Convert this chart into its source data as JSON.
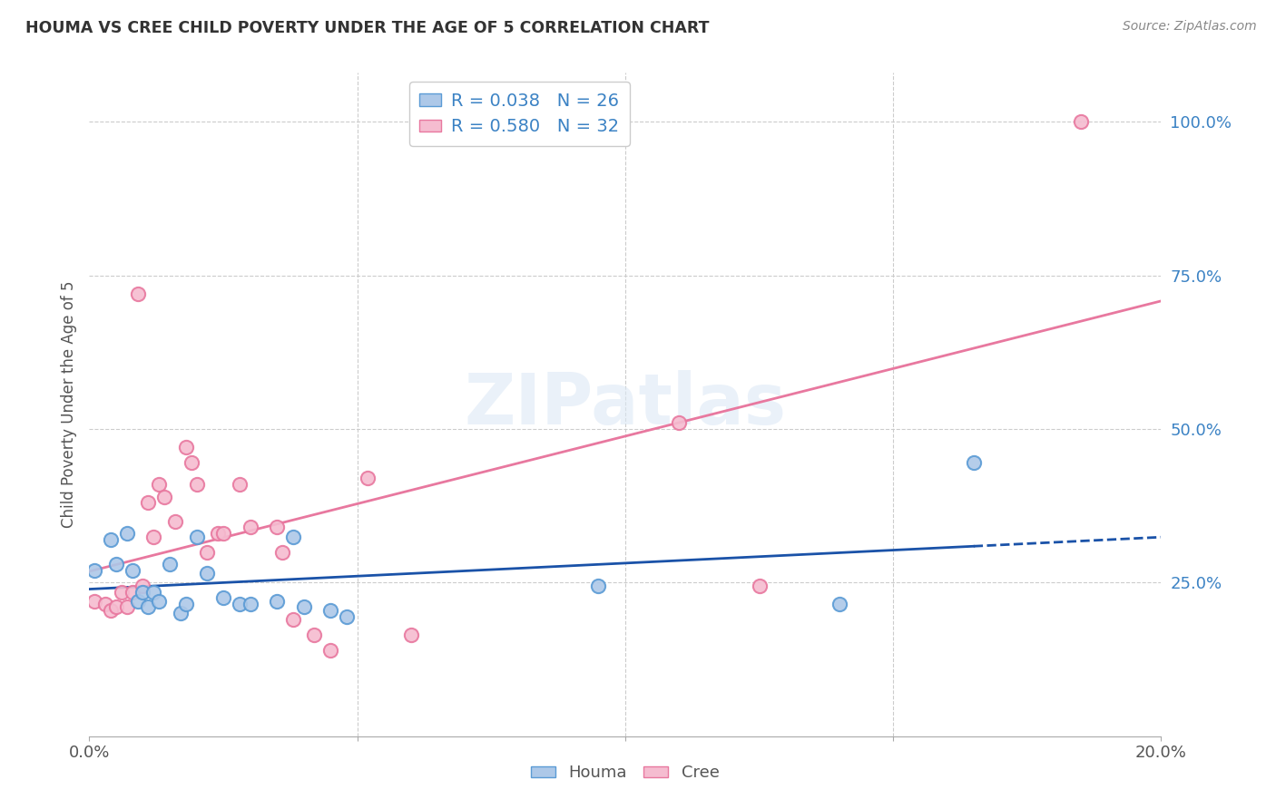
{
  "title": "HOUMA VS CREE CHILD POVERTY UNDER THE AGE OF 5 CORRELATION CHART",
  "source": "Source: ZipAtlas.com",
  "ylabel": "Child Poverty Under the Age of 5",
  "xlim": [
    0.0,
    0.2
  ],
  "ylim": [
    0.0,
    1.08
  ],
  "ytick_labels": [
    "25.0%",
    "50.0%",
    "75.0%",
    "100.0%"
  ],
  "ytick_vals": [
    0.25,
    0.5,
    0.75,
    1.0
  ],
  "houma_color": "#adc8e8",
  "houma_edge_color": "#5b9bd5",
  "cree_color": "#f5bcd0",
  "cree_edge_color": "#e8789f",
  "houma_line_color": "#1a52a8",
  "cree_line_color": "#e8789f",
  "houma_R": 0.038,
  "houma_N": 26,
  "cree_R": 0.58,
  "cree_N": 32,
  "watermark": "ZIPatlas",
  "houma_x": [
    0.001,
    0.004,
    0.005,
    0.007,
    0.008,
    0.009,
    0.01,
    0.011,
    0.012,
    0.013,
    0.015,
    0.017,
    0.018,
    0.02,
    0.022,
    0.025,
    0.028,
    0.03,
    0.035,
    0.038,
    0.04,
    0.045,
    0.048,
    0.095,
    0.14,
    0.165
  ],
  "houma_y": [
    0.27,
    0.32,
    0.28,
    0.33,
    0.27,
    0.22,
    0.235,
    0.21,
    0.235,
    0.22,
    0.28,
    0.2,
    0.215,
    0.325,
    0.265,
    0.225,
    0.215,
    0.215,
    0.22,
    0.325,
    0.21,
    0.205,
    0.195,
    0.245,
    0.215,
    0.445
  ],
  "cree_x": [
    0.001,
    0.003,
    0.004,
    0.005,
    0.006,
    0.007,
    0.008,
    0.009,
    0.01,
    0.011,
    0.012,
    0.013,
    0.014,
    0.016,
    0.018,
    0.019,
    0.02,
    0.022,
    0.024,
    0.025,
    0.028,
    0.03,
    0.035,
    0.036,
    0.038,
    0.042,
    0.045,
    0.052,
    0.06,
    0.11,
    0.125,
    0.185
  ],
  "cree_y": [
    0.22,
    0.215,
    0.205,
    0.21,
    0.235,
    0.21,
    0.235,
    0.72,
    0.245,
    0.38,
    0.325,
    0.41,
    0.39,
    0.35,
    0.47,
    0.445,
    0.41,
    0.3,
    0.33,
    0.33,
    0.41,
    0.34,
    0.34,
    0.3,
    0.19,
    0.165,
    0.14,
    0.42,
    0.165,
    0.51,
    0.245,
    1.0
  ],
  "legend_label_houma": "Houma",
  "legend_label_cree": "Cree",
  "bg_color": "#ffffff",
  "grid_color": "#cccccc",
  "marker_size": 120
}
